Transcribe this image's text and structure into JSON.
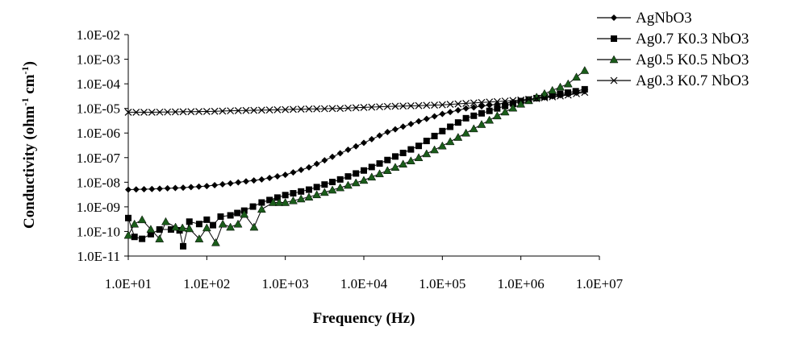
{
  "chart_data": {
    "type": "scatter",
    "xscale": "log",
    "yscale": "log",
    "xlabel": "Frequency (Hz)",
    "ylabel_main": "Conductivity (ohm",
    "ylabel_sup1": "-1",
    "ylabel_mid": "cm",
    "ylabel_sup2": "-1",
    "ylabel_end": ")",
    "xlim": [
      10,
      10000000
    ],
    "ylim": [
      1e-11,
      0.01
    ],
    "grid": false,
    "legend_position": "top-right",
    "xticks": [
      "1.0E+01",
      "1.0E+02",
      "1.0E+03",
      "1.0E+04",
      "1.0E+05",
      "1.0E+06",
      "1.0E+07"
    ],
    "yticks": [
      "1.0E-11",
      "1.0E-10",
      "1.0E-09",
      "1.0E-08",
      "1.0E-07",
      "1.0E-06",
      "1.0E-05",
      "1.0E-04",
      "1.0E-03",
      "1.0E-02"
    ],
    "series": [
      {
        "name": "AgNbO3",
        "marker": "diamond",
        "color": "#000000",
        "points": [
          [
            10,
            5e-09
          ],
          [
            20,
            5.3e-09
          ],
          [
            50,
            6e-09
          ],
          [
            100,
            7e-09
          ],
          [
            200,
            9e-09
          ],
          [
            500,
            1.3e-08
          ],
          [
            1000,
            2e-08
          ],
          [
            2000,
            4e-08
          ],
          [
            5000,
            1.5e-07
          ],
          [
            10000,
            4e-07
          ],
          [
            20000,
            1.1e-06
          ],
          [
            50000,
            3e-06
          ],
          [
            100000,
            6e-06
          ],
          [
            200000,
            1e-05
          ],
          [
            500000,
            1.5e-05
          ],
          [
            1000000,
            2e-05
          ],
          [
            2000000,
            2.8e-05
          ],
          [
            4000000,
            3.8e-05
          ],
          [
            6500000,
            5e-05
          ]
        ]
      },
      {
        "name": "Ag0.7 K0.3 NbO3",
        "marker": "square",
        "color": "#000000",
        "points": [
          [
            10,
            3.5e-10
          ],
          [
            12,
            6e-11
          ],
          [
            15,
            5e-11
          ],
          [
            25,
            1.2e-10
          ],
          [
            35,
            1.2e-10
          ],
          [
            45,
            1.1e-10
          ],
          [
            50,
            2.5e-11
          ],
          [
            60,
            2.5e-10
          ],
          [
            80,
            2e-10
          ],
          [
            100,
            3e-10
          ],
          [
            120,
            1.8e-10
          ],
          [
            150,
            4e-10
          ],
          [
            200,
            4.5e-10
          ],
          [
            300,
            7e-10
          ],
          [
            500,
            1.5e-09
          ],
          [
            1000,
            3e-09
          ],
          [
            2000,
            5e-09
          ],
          [
            5000,
            1.3e-08
          ],
          [
            10000,
            3e-08
          ],
          [
            20000,
            8e-08
          ],
          [
            50000,
            3e-07
          ],
          [
            100000,
            1.2e-06
          ],
          [
            200000,
            4e-06
          ],
          [
            500000,
            1e-05
          ],
          [
            1000000,
            2e-05
          ],
          [
            2000000,
            3e-05
          ],
          [
            5000000,
            5e-05
          ],
          [
            6500000,
            6e-05
          ]
        ]
      },
      {
        "name": "Ag0.5 K0.5 NbO3",
        "marker": "triangle",
        "color": "#1a5c1a",
        "points": [
          [
            10,
            7e-11
          ],
          [
            12,
            2e-10
          ],
          [
            15,
            3e-10
          ],
          [
            25,
            5e-11
          ],
          [
            30,
            2.5e-10
          ],
          [
            40,
            1.5e-10
          ],
          [
            60,
            1.3e-10
          ],
          [
            80,
            5e-11
          ],
          [
            100,
            1.4e-10
          ],
          [
            130,
            3.5e-11
          ],
          [
            160,
            2e-10
          ],
          [
            200,
            1.5e-10
          ],
          [
            250,
            2e-10
          ],
          [
            300,
            5e-10
          ],
          [
            400,
            1.5e-10
          ],
          [
            500,
            8e-10
          ],
          [
            700,
            1.5e-09
          ],
          [
            1000,
            1.5e-09
          ],
          [
            2000,
            2.5e-09
          ],
          [
            5000,
            6e-09
          ],
          [
            10000,
            1.2e-08
          ],
          [
            20000,
            3e-08
          ],
          [
            50000,
            1e-07
          ],
          [
            100000,
            3e-07
          ],
          [
            200000,
            1e-06
          ],
          [
            500000,
            5e-06
          ],
          [
            1000000,
            1.5e-05
          ],
          [
            2000000,
            4e-05
          ],
          [
            4000000,
            0.0001
          ],
          [
            6500000,
            0.00035
          ]
        ]
      },
      {
        "name": "Ag0.3 K0.7 NbO3",
        "marker": "x",
        "color": "#000000",
        "points": [
          [
            10,
            7e-06
          ],
          [
            20,
            7e-06
          ],
          [
            50,
            7.3e-06
          ],
          [
            100,
            7.5e-06
          ],
          [
            200,
            8e-06
          ],
          [
            500,
            8.5e-06
          ],
          [
            1000,
            9e-06
          ],
          [
            2000,
            9.5e-06
          ],
          [
            5000,
            1e-05
          ],
          [
            10000,
            1.1e-05
          ],
          [
            20000,
            1.2e-05
          ],
          [
            50000,
            1.3e-05
          ],
          [
            100000,
            1.4e-05
          ],
          [
            200000,
            1.6e-05
          ],
          [
            500000,
            1.9e-05
          ],
          [
            1000000,
            2.2e-05
          ],
          [
            2000000,
            2.7e-05
          ],
          [
            4000000,
            3.5e-05
          ],
          [
            6500000,
            4.5e-05
          ]
        ]
      }
    ]
  }
}
